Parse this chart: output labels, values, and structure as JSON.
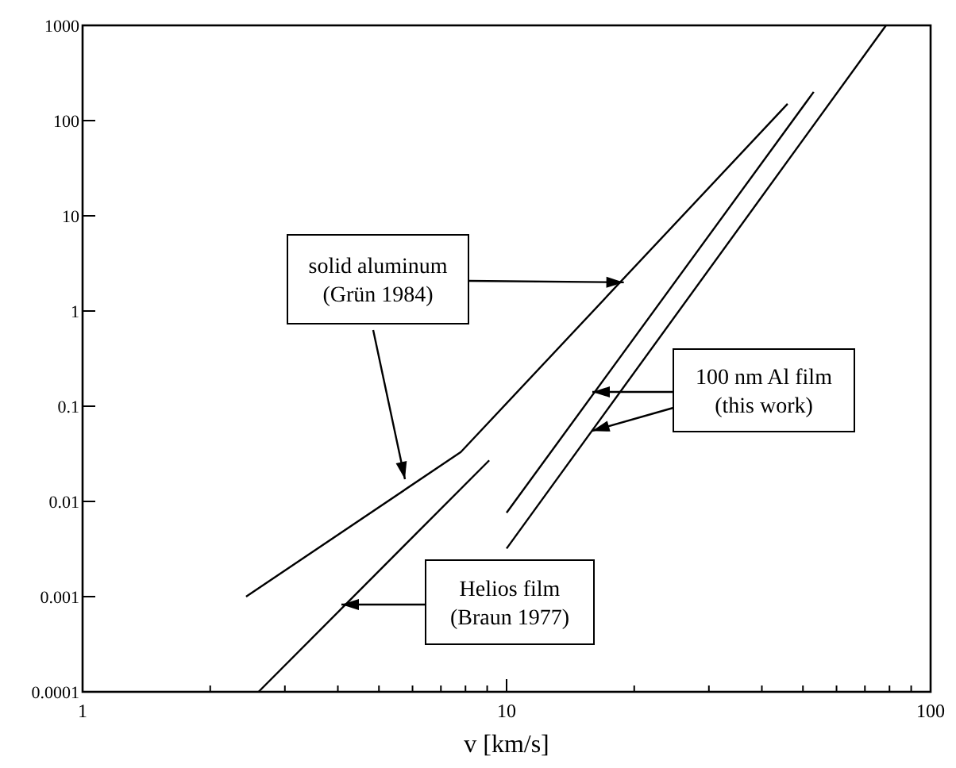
{
  "chart_data": {
    "type": "line",
    "xlabel": "v  [km/s]",
    "log": "xy",
    "xlim": [
      1,
      100
    ],
    "ylim": [
      0.0001,
      1000
    ],
    "xticks": [
      1,
      {
        "value": 2,
        "label": null
      },
      {
        "value": 3,
        "label": null
      },
      {
        "value": 4,
        "label": null
      },
      {
        "value": 5,
        "label": null
      },
      {
        "value": 6,
        "label": null
      },
      {
        "value": 7,
        "label": null
      },
      {
        "value": 8,
        "label": null
      },
      {
        "value": 9,
        "label": null
      },
      10,
      {
        "value": 20,
        "label": null
      },
      {
        "value": 30,
        "label": null
      },
      {
        "value": 40,
        "label": null
      },
      {
        "value": 50,
        "label": null
      },
      {
        "value": 60,
        "label": null
      },
      {
        "value": 70,
        "label": null
      },
      {
        "value": 80,
        "label": null
      },
      {
        "value": 90,
        "label": null
      },
      100
    ],
    "yticks": [
      0.0001,
      0.001,
      0.01,
      0.1,
      1,
      10,
      100,
      1000
    ],
    "grid": false,
    "line_style": "solid",
    "series": [
      {
        "color": "#000000",
        "x": [
          2.43,
          7.8,
          46
        ],
        "values": [
          0.001,
          0.033,
          150
        ]
      },
      {
        "color": "#000000",
        "x": [
          2.6,
          9.1
        ],
        "values": [
          0.0001,
          0.027
        ]
      },
      {
        "color": "#000000",
        "x": [
          10,
          53
        ],
        "values": [
          0.0076,
          200
        ]
      },
      {
        "color": "#000000",
        "x": [
          10,
          78.5
        ],
        "values": [
          0.0032,
          1000
        ]
      }
    ],
    "annotations": [
      {
        "text": "solid aluminum\n(Grün 1984)",
        "x": 18.9,
        "y": 2
      },
      {
        "text": "100 nm Al film\n(this work)",
        "x": 15.9,
        "y": 0.055
      },
      "Helios film\n(Braun 1977)"
    ]
  }
}
